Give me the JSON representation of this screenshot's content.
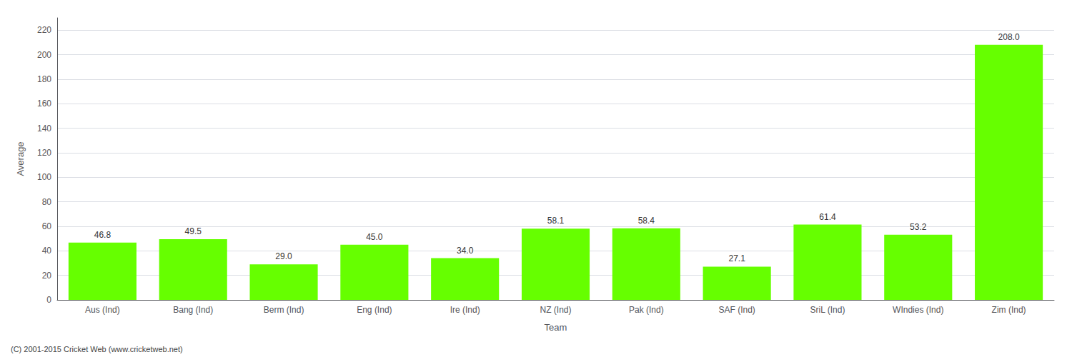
{
  "chart_data": {
    "type": "bar",
    "categories": [
      "Aus (Ind)",
      "Bang (Ind)",
      "Berm (Ind)",
      "Eng (Ind)",
      "Ire (Ind)",
      "NZ (Ind)",
      "Pak (Ind)",
      "SAF (Ind)",
      "SriL (Ind)",
      "WIndies (Ind)",
      "Zim (Ind)"
    ],
    "values": [
      46.8,
      49.5,
      29.0,
      45.0,
      34.0,
      58.1,
      58.4,
      27.1,
      61.4,
      53.2,
      208.0
    ],
    "value_labels": [
      "46.8",
      "49.5",
      "29.0",
      "45.0",
      "34.0",
      "58.1",
      "58.4",
      "27.1",
      "61.4",
      "53.2",
      "208.0"
    ],
    "data_labels": true,
    "color": "#66ff00",
    "xlabel": "Team",
    "ylabel": "Average",
    "ylim": [
      0,
      230
    ],
    "yticks": [
      0,
      20,
      40,
      60,
      80,
      100,
      120,
      140,
      160,
      180,
      200,
      220
    ],
    "grid": true,
    "annotations": [
      "(C) 2001-2015 Cricket Web (www.cricketweb.net)"
    ]
  }
}
